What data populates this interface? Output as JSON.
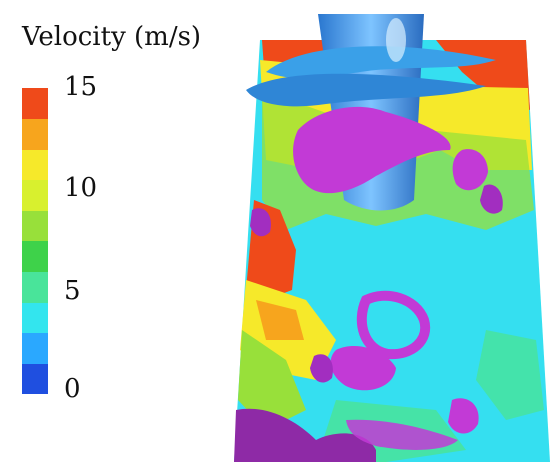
{
  "legend": {
    "title": "Velocity (m/s)",
    "ticks": [
      "15",
      "10",
      "5",
      "0"
    ],
    "tick_values": [
      15,
      10,
      5,
      0
    ],
    "range": [
      0,
      15
    ],
    "colormap": [
      "#1f4fe0",
      "#2aa8ff",
      "#33e5ee",
      "#49e49a",
      "#3ed24a",
      "#98e03a",
      "#d8f02e",
      "#f6e92a",
      "#f7a51d",
      "#ef4a1a"
    ]
  },
  "scene": {
    "background_color": "#35dff0",
    "isosurface_color": "#c23ad6",
    "body_color": "#3aa0e8"
  }
}
